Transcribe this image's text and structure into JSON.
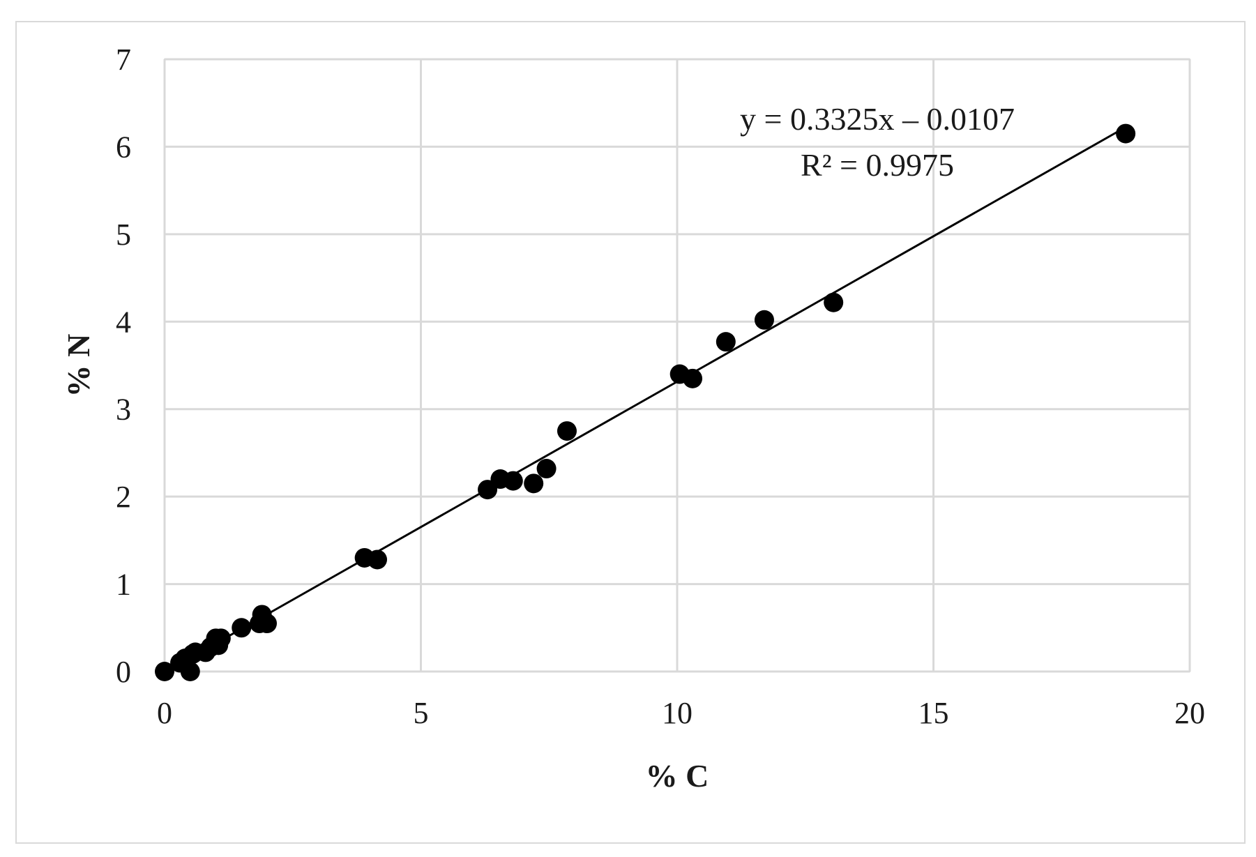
{
  "chart_data": {
    "type": "scatter",
    "xlabel": "% C",
    "ylabel": "% N",
    "xlim": [
      0,
      20
    ],
    "ylim": [
      0,
      7
    ],
    "x_ticks": [
      "0",
      "5",
      "10",
      "15",
      "20"
    ],
    "y_ticks": [
      "0",
      "1",
      "2",
      "3",
      "4",
      "5",
      "6",
      "7"
    ],
    "grid": true,
    "marker_color": "#000000",
    "line_color": "#000000",
    "grid_color": "#d9d9d9",
    "series": [
      {
        "points": [
          {
            "x": 0.0,
            "y": 0.0
          },
          {
            "x": 0.3,
            "y": 0.1
          },
          {
            "x": 0.4,
            "y": 0.15
          },
          {
            "x": 0.5,
            "y": 0.0
          },
          {
            "x": 0.55,
            "y": 0.2
          },
          {
            "x": 0.6,
            "y": 0.22
          },
          {
            "x": 0.8,
            "y": 0.22
          },
          {
            "x": 0.9,
            "y": 0.28
          },
          {
            "x": 1.0,
            "y": 0.38
          },
          {
            "x": 1.05,
            "y": 0.3
          },
          {
            "x": 1.1,
            "y": 0.38
          },
          {
            "x": 1.5,
            "y": 0.5
          },
          {
            "x": 1.85,
            "y": 0.55
          },
          {
            "x": 1.9,
            "y": 0.65
          },
          {
            "x": 2.0,
            "y": 0.55
          },
          {
            "x": 3.9,
            "y": 1.3
          },
          {
            "x": 4.15,
            "y": 1.28
          },
          {
            "x": 6.3,
            "y": 2.08
          },
          {
            "x": 6.55,
            "y": 2.2
          },
          {
            "x": 6.8,
            "y": 2.18
          },
          {
            "x": 7.2,
            "y": 2.15
          },
          {
            "x": 7.45,
            "y": 2.32
          },
          {
            "x": 7.85,
            "y": 2.75
          },
          {
            "x": 10.05,
            "y": 3.4
          },
          {
            "x": 10.3,
            "y": 3.35
          },
          {
            "x": 10.95,
            "y": 3.77
          },
          {
            "x": 11.7,
            "y": 4.02
          },
          {
            "x": 13.05,
            "y": 4.22
          },
          {
            "x": 18.75,
            "y": 6.15
          }
        ]
      }
    ],
    "trendline": {
      "slope": 0.3325,
      "intercept": -0.0107,
      "x_range": [
        0,
        18.75
      ],
      "equation": "y = 0.3325x – 0.0107",
      "r_squared": "R² = 0.9975"
    }
  }
}
